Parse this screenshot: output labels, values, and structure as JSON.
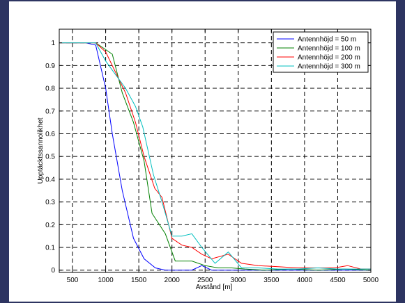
{
  "chart_data": {
    "type": "line",
    "title": "",
    "xlabel": "Avstånd [m]",
    "ylabel": "Upptäcktssannolikhet",
    "xlim": [
      300,
      5000
    ],
    "ylim": [
      -0.01,
      1.06
    ],
    "xticks": [
      500,
      1000,
      1500,
      2000,
      2500,
      3000,
      3500,
      4000,
      4500,
      5000
    ],
    "xtick_labels": [
      "500",
      "1000",
      "1500",
      "2000",
      "2500",
      "3000",
      "3500",
      "4000",
      "4500",
      "5000"
    ],
    "yticks": [
      0,
      0.1,
      0.2,
      0.3,
      0.4,
      0.5,
      0.6,
      0.7,
      0.8,
      0.9,
      1
    ],
    "ytick_labels": [
      "0",
      "0.1",
      "0.2",
      "0.3",
      "0.4",
      "0.5",
      "0.6",
      "0.7",
      "0.8",
      "0.9",
      "1"
    ],
    "grid": true,
    "legend_position": "top-right",
    "series": [
      {
        "name": "Antennhöjd = 50 m",
        "color": "#0000ff",
        "x": [
          300,
          700,
          850,
          1000,
          1100,
          1250,
          1420,
          1580,
          1750,
          1900,
          2100,
          2300,
          2450,
          2600,
          2800,
          3000,
          3200,
          3500,
          3800,
          4100,
          4400,
          4700,
          5000
        ],
        "y": [
          1,
          1,
          0.99,
          0.8,
          0.6,
          0.35,
          0.14,
          0.05,
          0.01,
          0,
          0,
          0,
          0.02,
          0,
          0,
          0,
          0,
          0,
          0,
          0,
          0,
          0,
          0
        ]
      },
      {
        "name": "Antennhöjd = 100 m",
        "color": "#008000",
        "x": [
          300,
          700,
          850,
          1000,
          1100,
          1250,
          1420,
          1580,
          1700,
          1900,
          2050,
          2300,
          2500,
          2700,
          2900,
          3100,
          3400,
          3800,
          4200,
          4600,
          5000
        ],
        "y": [
          1,
          1,
          1,
          0.97,
          0.95,
          0.78,
          0.65,
          0.48,
          0.25,
          0.16,
          0.04,
          0.04,
          0.02,
          0.01,
          0.01,
          0.005,
          0,
          0.005,
          0,
          0.005,
          0
        ]
      },
      {
        "name": "Antennhöjd = 200 m",
        "color": "#ff0000",
        "x": [
          300,
          700,
          850,
          1000,
          1150,
          1300,
          1450,
          1580,
          1740,
          1850,
          2000,
          2150,
          2300,
          2450,
          2600,
          2850,
          3050,
          3300,
          3600,
          3900,
          4200,
          4450,
          4650,
          4850,
          5000
        ],
        "y": [
          1,
          1,
          1,
          0.96,
          0.87,
          0.78,
          0.65,
          0.5,
          0.36,
          0.32,
          0.14,
          0.11,
          0.1,
          0.07,
          0.05,
          0.07,
          0.03,
          0.02,
          0.015,
          0.01,
          0.01,
          0.01,
          0.02,
          0.005,
          0.005
        ]
      },
      {
        "name": "Antennhöjd = 300 m",
        "color": "#00bfbf",
        "x": [
          300,
          700,
          850,
          1000,
          1150,
          1300,
          1450,
          1560,
          1720,
          1850,
          2000,
          2150,
          2300,
          2450,
          2650,
          2850,
          3050,
          3300,
          3600,
          3900,
          4200,
          4500,
          4800,
          5000
        ],
        "y": [
          1,
          1,
          1,
          0.92,
          0.86,
          0.8,
          0.72,
          0.63,
          0.42,
          0.3,
          0.15,
          0.15,
          0.16,
          0.1,
          0.03,
          0.08,
          0.01,
          0.01,
          0.005,
          0.005,
          0.01,
          0.005,
          0.005,
          0.005
        ]
      }
    ]
  }
}
